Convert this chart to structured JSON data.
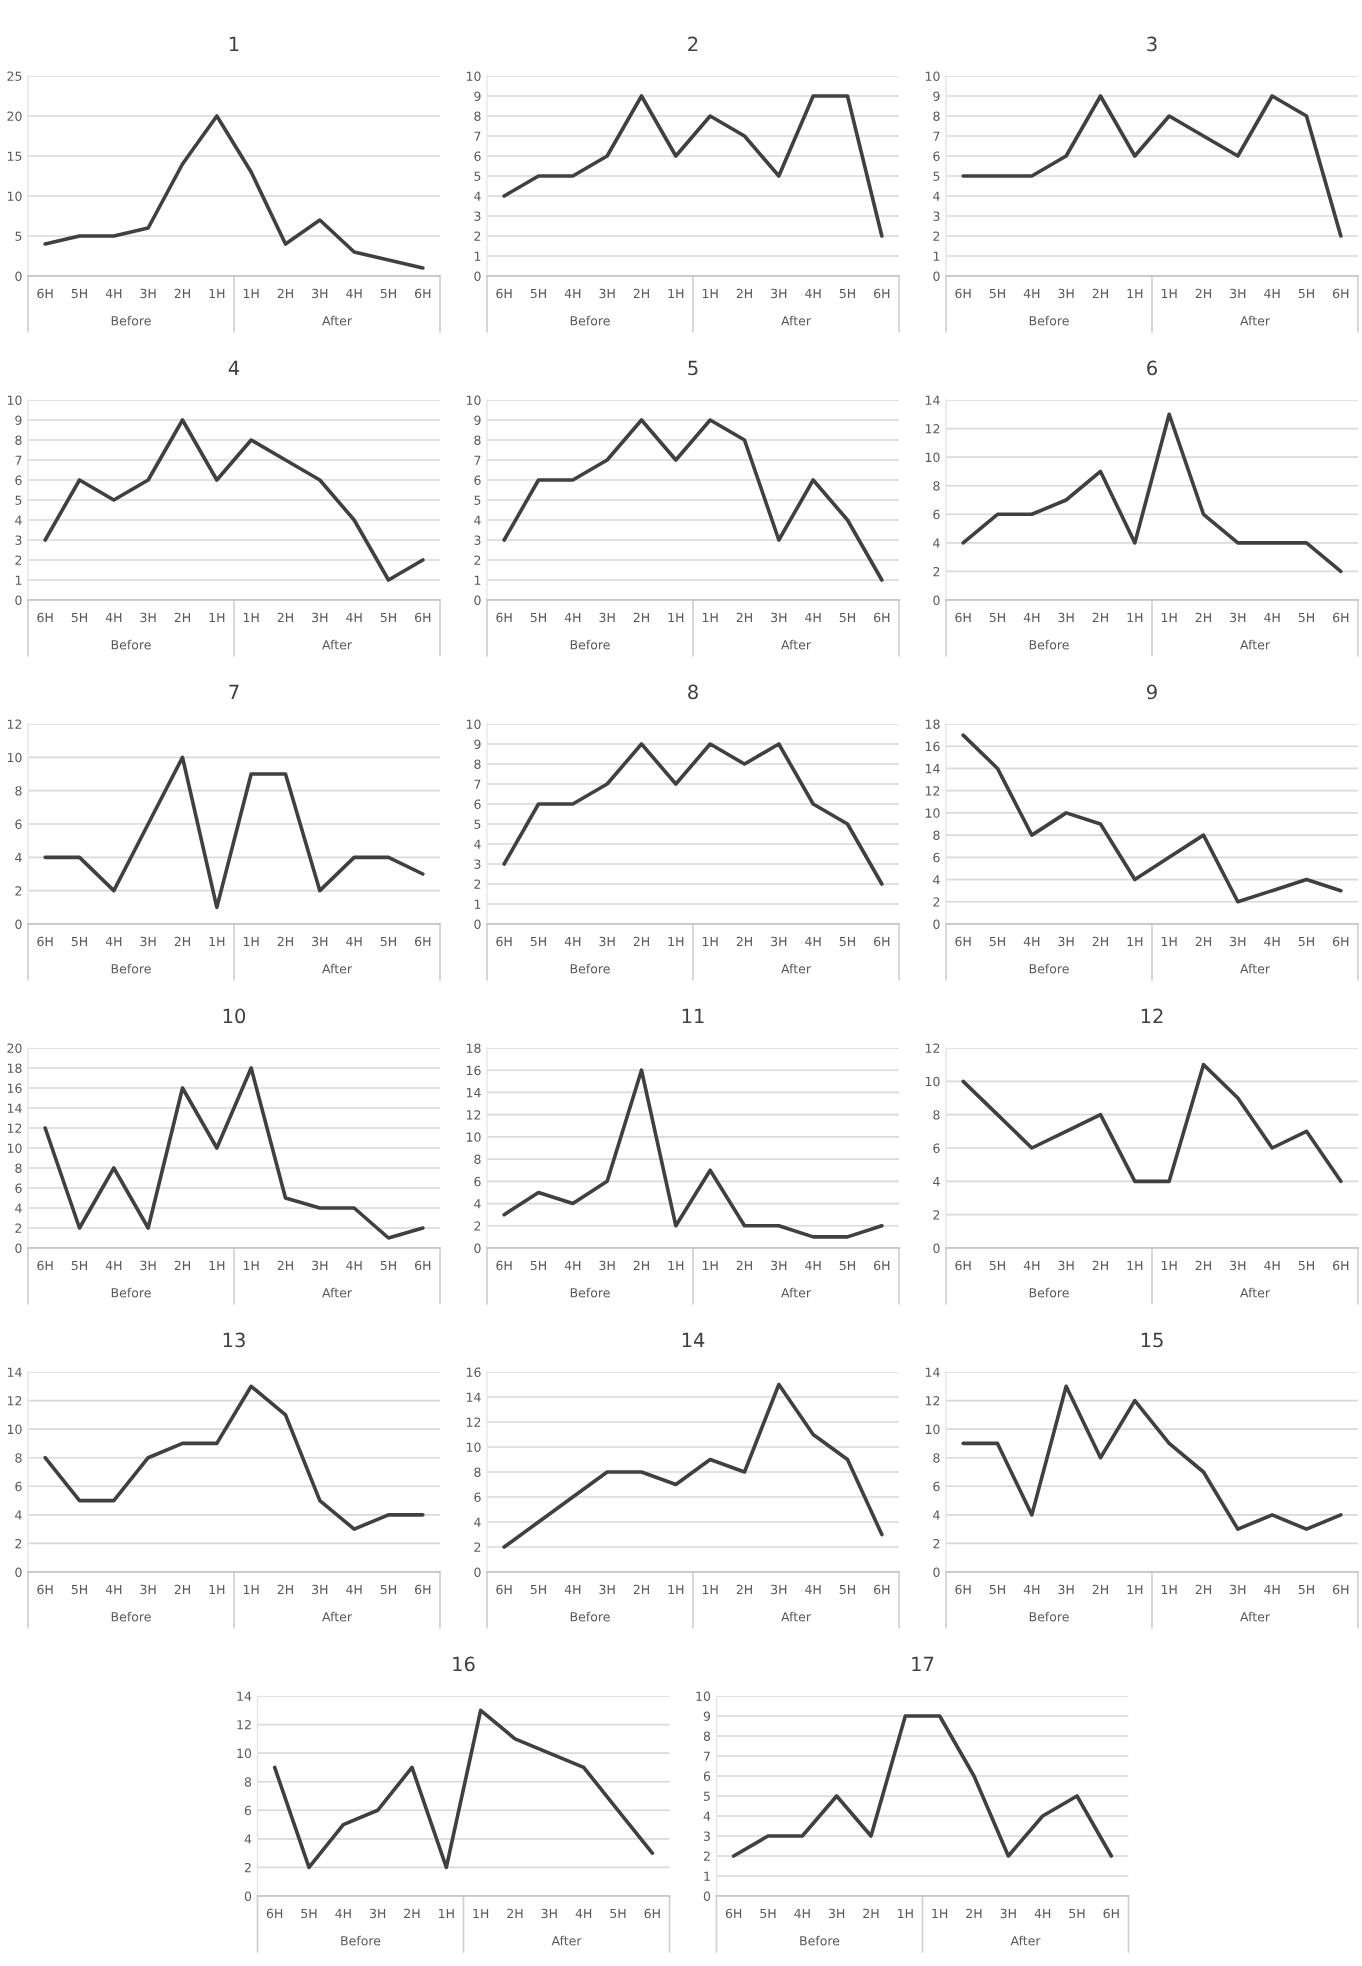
{
  "chart_data": [
    {
      "type": "line",
      "title": "1",
      "categories": [
        "6H",
        "5H",
        "4H",
        "3H",
        "2H",
        "1H",
        "1H",
        "2H",
        "3H",
        "4H",
        "5H",
        "6H"
      ],
      "annotations": [
        "Before",
        "After"
      ],
      "series": [
        {
          "color": "#404040",
          "values": [
            4,
            5,
            5,
            6,
            14,
            20,
            13,
            4,
            7,
            3,
            2,
            1
          ]
        }
      ],
      "ylim": [
        0,
        25
      ],
      "yticks": [
        0,
        5,
        10,
        15,
        20,
        25
      ],
      "grid": "y",
      "line_style": "solid"
    },
    {
      "type": "line",
      "title": "2",
      "categories": [
        "6H",
        "5H",
        "4H",
        "3H",
        "2H",
        "1H",
        "1H",
        "2H",
        "3H",
        "4H",
        "5H",
        "6H"
      ],
      "annotations": [
        "Before",
        "After"
      ],
      "series": [
        {
          "color": "#404040",
          "values": [
            4,
            5,
            5,
            6,
            9,
            6,
            8,
            7,
            5,
            9,
            9,
            2
          ]
        }
      ],
      "ylim": [
        0,
        10
      ],
      "yticks": [
        0,
        1,
        2,
        3,
        4,
        5,
        6,
        7,
        8,
        9,
        10
      ],
      "grid": "y",
      "line_style": "solid"
    },
    {
      "type": "line",
      "title": "3",
      "categories": [
        "6H",
        "5H",
        "4H",
        "3H",
        "2H",
        "1H",
        "1H",
        "2H",
        "3H",
        "4H",
        "5H",
        "6H"
      ],
      "annotations": [
        "Before",
        "After"
      ],
      "series": [
        {
          "color": "#404040",
          "values": [
            5,
            5,
            5,
            6,
            9,
            6,
            8,
            7,
            6,
            9,
            8,
            2
          ]
        }
      ],
      "ylim": [
        0,
        10
      ],
      "yticks": [
        0,
        1,
        2,
        3,
        4,
        5,
        6,
        7,
        8,
        9,
        10
      ],
      "grid": "y",
      "line_style": "solid"
    },
    {
      "type": "line",
      "title": "4",
      "categories": [
        "6H",
        "5H",
        "4H",
        "3H",
        "2H",
        "1H",
        "1H",
        "2H",
        "3H",
        "4H",
        "5H",
        "6H"
      ],
      "annotations": [
        "Before",
        "After"
      ],
      "series": [
        {
          "color": "#404040",
          "values": [
            3,
            6,
            5,
            6,
            9,
            6,
            8,
            7,
            6,
            4,
            1,
            2
          ]
        }
      ],
      "ylim": [
        0,
        10
      ],
      "yticks": [
        0,
        1,
        2,
        3,
        4,
        5,
        6,
        7,
        8,
        9,
        10
      ],
      "grid": "y",
      "line_style": "solid"
    },
    {
      "type": "line",
      "title": "5",
      "categories": [
        "6H",
        "5H",
        "4H",
        "3H",
        "2H",
        "1H",
        "1H",
        "2H",
        "3H",
        "4H",
        "5H",
        "6H"
      ],
      "annotations": [
        "Before",
        "After"
      ],
      "series": [
        {
          "color": "#404040",
          "values": [
            3,
            6,
            6,
            7,
            9,
            7,
            9,
            8,
            3,
            6,
            4,
            1
          ]
        }
      ],
      "ylim": [
        0,
        10
      ],
      "yticks": [
        0,
        1,
        2,
        3,
        4,
        5,
        6,
        7,
        8,
        9,
        10
      ],
      "grid": "y",
      "line_style": "solid"
    },
    {
      "type": "line",
      "title": "6",
      "categories": [
        "6H",
        "5H",
        "4H",
        "3H",
        "2H",
        "1H",
        "1H",
        "2H",
        "3H",
        "4H",
        "5H",
        "6H"
      ],
      "annotations": [
        "Before",
        "After"
      ],
      "series": [
        {
          "color": "#404040",
          "values": [
            4,
            6,
            6,
            7,
            9,
            4,
            13,
            6,
            4,
            4,
            4,
            2
          ]
        }
      ],
      "ylim": [
        0,
        14
      ],
      "yticks": [
        0,
        2,
        4,
        6,
        8,
        10,
        12,
        14
      ],
      "grid": "y",
      "line_style": "solid"
    },
    {
      "type": "line",
      "title": "7",
      "categories": [
        "6H",
        "5H",
        "4H",
        "3H",
        "2H",
        "1H",
        "1H",
        "2H",
        "3H",
        "4H",
        "5H",
        "6H"
      ],
      "annotations": [
        "Before",
        "After"
      ],
      "series": [
        {
          "color": "#404040",
          "values": [
            4,
            4,
            2,
            6,
            10,
            1,
            9,
            9,
            2,
            4,
            4,
            3
          ]
        }
      ],
      "ylim": [
        0,
        12
      ],
      "yticks": [
        0,
        2,
        4,
        6,
        8,
        10,
        12
      ],
      "grid": "y",
      "line_style": "solid"
    },
    {
      "type": "line",
      "title": "8",
      "categories": [
        "6H",
        "5H",
        "4H",
        "3H",
        "2H",
        "1H",
        "1H",
        "2H",
        "3H",
        "4H",
        "5H",
        "6H"
      ],
      "annotations": [
        "Before",
        "After"
      ],
      "series": [
        {
          "color": "#404040",
          "values": [
            3,
            6,
            6,
            7,
            9,
            7,
            9,
            8,
            9,
            6,
            5,
            2
          ]
        }
      ],
      "ylim": [
        0,
        10
      ],
      "yticks": [
        0,
        1,
        2,
        3,
        4,
        5,
        6,
        7,
        8,
        9,
        10
      ],
      "grid": "y",
      "line_style": "solid"
    },
    {
      "type": "line",
      "title": "9",
      "categories": [
        "6H",
        "5H",
        "4H",
        "3H",
        "2H",
        "1H",
        "1H",
        "2H",
        "3H",
        "4H",
        "5H",
        "6H"
      ],
      "annotations": [
        "Before",
        "After"
      ],
      "series": [
        {
          "color": "#404040",
          "values": [
            17,
            14,
            8,
            10,
            9,
            4,
            6,
            8,
            2,
            3,
            4,
            3
          ]
        }
      ],
      "ylim": [
        0,
        18
      ],
      "yticks": [
        0,
        2,
        4,
        6,
        8,
        10,
        12,
        14,
        16,
        18
      ],
      "grid": "y",
      "line_style": "solid"
    },
    {
      "type": "line",
      "title": "10",
      "categories": [
        "6H",
        "5H",
        "4H",
        "3H",
        "2H",
        "1H",
        "1H",
        "2H",
        "3H",
        "4H",
        "5H",
        "6H"
      ],
      "annotations": [
        "Before",
        "After"
      ],
      "series": [
        {
          "color": "#404040",
          "values": [
            12,
            2,
            8,
            2,
            16,
            10,
            18,
            5,
            4,
            4,
            1,
            2
          ]
        }
      ],
      "ylim": [
        0,
        20
      ],
      "yticks": [
        0,
        2,
        4,
        6,
        8,
        10,
        12,
        14,
        16,
        18,
        20
      ],
      "grid": "y",
      "line_style": "solid"
    },
    {
      "type": "line",
      "title": "11",
      "categories": [
        "6H",
        "5H",
        "4H",
        "3H",
        "2H",
        "1H",
        "1H",
        "2H",
        "3H",
        "4H",
        "5H",
        "6H"
      ],
      "annotations": [
        "Before",
        "After"
      ],
      "series": [
        {
          "color": "#404040",
          "values": [
            3,
            5,
            4,
            6,
            16,
            2,
            7,
            2,
            2,
            1,
            1,
            2
          ]
        }
      ],
      "ylim": [
        0,
        18
      ],
      "yticks": [
        0,
        2,
        4,
        6,
        8,
        10,
        12,
        14,
        16,
        18
      ],
      "grid": "y",
      "line_style": "solid"
    },
    {
      "type": "line",
      "title": "12",
      "categories": [
        "6H",
        "5H",
        "4H",
        "3H",
        "2H",
        "1H",
        "1H",
        "2H",
        "3H",
        "4H",
        "5H",
        "6H"
      ],
      "annotations": [
        "Before",
        "After"
      ],
      "series": [
        {
          "color": "#404040",
          "values": [
            10,
            8,
            6,
            7,
            8,
            4,
            4,
            11,
            9,
            6,
            7,
            4
          ]
        }
      ],
      "ylim": [
        0,
        12
      ],
      "yticks": [
        0,
        2,
        4,
        6,
        8,
        10,
        12
      ],
      "grid": "y",
      "line_style": "solid"
    },
    {
      "type": "line",
      "title": "13",
      "categories": [
        "6H",
        "5H",
        "4H",
        "3H",
        "2H",
        "1H",
        "1H",
        "2H",
        "3H",
        "4H",
        "5H",
        "6H"
      ],
      "annotations": [
        "Before",
        "After"
      ],
      "series": [
        {
          "color": "#404040",
          "values": [
            8,
            5,
            5,
            8,
            9,
            9,
            13,
            11,
            5,
            3,
            4,
            4
          ]
        }
      ],
      "ylim": [
        0,
        14
      ],
      "yticks": [
        0,
        2,
        4,
        6,
        8,
        10,
        12,
        14
      ],
      "grid": "y",
      "line_style": "solid"
    },
    {
      "type": "line",
      "title": "14",
      "categories": [
        "6H",
        "5H",
        "4H",
        "3H",
        "2H",
        "1H",
        "1H",
        "2H",
        "3H",
        "4H",
        "5H",
        "6H"
      ],
      "annotations": [
        "Before",
        "After"
      ],
      "series": [
        {
          "color": "#404040",
          "values": [
            2,
            4,
            6,
            8,
            8,
            7,
            9,
            8,
            15,
            11,
            9,
            3
          ]
        }
      ],
      "ylim": [
        0,
        16
      ],
      "yticks": [
        0,
        2,
        4,
        6,
        8,
        10,
        12,
        14,
        16
      ],
      "grid": "y",
      "line_style": "solid"
    },
    {
      "type": "line",
      "title": "15",
      "categories": [
        "6H",
        "5H",
        "4H",
        "3H",
        "2H",
        "1H",
        "1H",
        "2H",
        "3H",
        "4H",
        "5H",
        "6H"
      ],
      "annotations": [
        "Before",
        "After"
      ],
      "series": [
        {
          "color": "#404040",
          "values": [
            9,
            9,
            4,
            13,
            8,
            12,
            9,
            7,
            3,
            4,
            3,
            4
          ]
        }
      ],
      "ylim": [
        0,
        14
      ],
      "yticks": [
        0,
        2,
        4,
        6,
        8,
        10,
        12,
        14
      ],
      "grid": "y",
      "line_style": "solid"
    },
    {
      "type": "line",
      "title": "16",
      "categories": [
        "6H",
        "5H",
        "4H",
        "3H",
        "2H",
        "1H",
        "1H",
        "2H",
        "3H",
        "4H",
        "5H",
        "6H"
      ],
      "annotations": [
        "Before",
        "After"
      ],
      "series": [
        {
          "color": "#404040",
          "values": [
            9,
            2,
            5,
            6,
            9,
            2,
            13,
            11,
            10,
            9,
            6,
            3
          ]
        }
      ],
      "ylim": [
        0,
        14
      ],
      "yticks": [
        0,
        2,
        4,
        6,
        8,
        10,
        12,
        14
      ],
      "grid": "y",
      "line_style": "solid"
    },
    {
      "type": "line",
      "title": "17",
      "categories": [
        "6H",
        "5H",
        "4H",
        "3H",
        "2H",
        "1H",
        "1H",
        "2H",
        "3H",
        "4H",
        "5H",
        "6H"
      ],
      "annotations": [
        "Before",
        "After"
      ],
      "series": [
        {
          "color": "#404040",
          "values": [
            2,
            3,
            3,
            5,
            3,
            9,
            9,
            6,
            2,
            4,
            5,
            2
          ]
        }
      ],
      "ylim": [
        0,
        10
      ],
      "yticks": [
        0,
        1,
        2,
        3,
        4,
        5,
        6,
        7,
        8,
        9,
        10
      ],
      "grid": "y",
      "line_style": "solid"
    }
  ]
}
